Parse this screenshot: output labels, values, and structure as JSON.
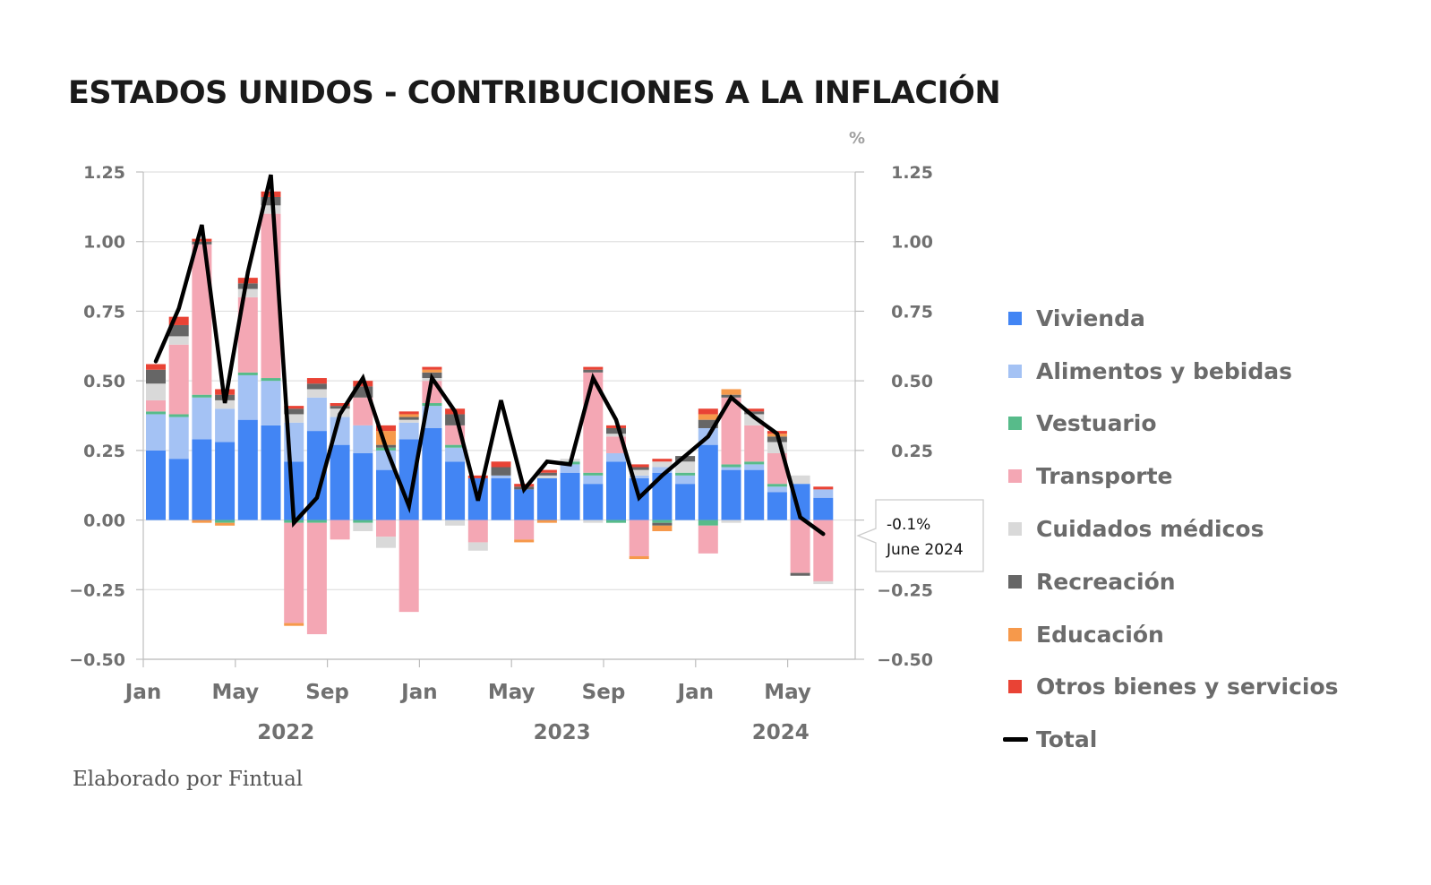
{
  "title": "ESTADOS UNIDOS - CONTRIBUCIONES A LA INFLACIÓN",
  "credit": "Elaborado por Fintual",
  "tooltip": {
    "value": "-0.1%",
    "date": "June 2024"
  },
  "chart_data": {
    "type": "bar",
    "stacked": true,
    "unit_label": "%",
    "ylim": [
      -0.5,
      1.25
    ],
    "y_ticks": [
      "1.25",
      "1.00",
      "0.75",
      "0.50",
      "0.25",
      "0.00",
      "−0.25",
      "−0.50"
    ],
    "y_tick_values": [
      1.25,
      1.0,
      0.75,
      0.5,
      0.25,
      0.0,
      -0.25,
      -0.5
    ],
    "x_tick_labels": [
      {
        "index": 0,
        "label": "Jan"
      },
      {
        "index": 4,
        "label": "May"
      },
      {
        "index": 8,
        "label": "Sep"
      },
      {
        "index": 12,
        "label": "Jan"
      },
      {
        "index": 16,
        "label": "May"
      },
      {
        "index": 20,
        "label": "Sep"
      },
      {
        "index": 24,
        "label": "Jan"
      },
      {
        "index": 28,
        "label": "May"
      }
    ],
    "year_labels": [
      {
        "label": "2022",
        "center_index": 6
      },
      {
        "label": "2023",
        "center_index": 18
      },
      {
        "label": "2024",
        "center_index": 27.5
      }
    ],
    "grid": true,
    "legend_position": "right",
    "categories": [
      "2022-01",
      "2022-02",
      "2022-03",
      "2022-04",
      "2022-05",
      "2022-06",
      "2022-07",
      "2022-08",
      "2022-09",
      "2022-10",
      "2022-11",
      "2022-12",
      "2023-01",
      "2023-02",
      "2023-03",
      "2023-04",
      "2023-05",
      "2023-06",
      "2023-07",
      "2023-08",
      "2023-09",
      "2023-10",
      "2023-11",
      "2023-12",
      "2024-01",
      "2024-02",
      "2024-03",
      "2024-04",
      "2024-05",
      "2024-06"
    ],
    "series": [
      {
        "name": "Vivienda",
        "color": "#4285f4",
        "values": [
          0.25,
          0.22,
          0.29,
          0.28,
          0.36,
          0.34,
          0.21,
          0.32,
          0.27,
          0.24,
          0.18,
          0.29,
          0.33,
          0.21,
          0.15,
          0.15,
          0.11,
          0.15,
          0.17,
          0.13,
          0.21,
          0.15,
          0.17,
          0.13,
          0.27,
          0.18,
          0.18,
          0.1,
          0.13,
          0.08
        ]
      },
      {
        "name": "Alimentos y bebidas",
        "color": "#a4c2f4",
        "values": [
          0.13,
          0.15,
          0.15,
          0.12,
          0.16,
          0.16,
          0.14,
          0.12,
          0.1,
          0.1,
          0.07,
          0.06,
          0.08,
          0.05,
          0.0,
          0.01,
          0.0,
          0.0,
          0.03,
          0.03,
          0.03,
          0.01,
          0.02,
          0.03,
          0.06,
          0.01,
          0.02,
          0.02,
          0.0,
          0.03
        ]
      },
      {
        "name": "Vestuario",
        "color": "#57bb8a",
        "values": [
          0.01,
          0.01,
          0.01,
          -0.01,
          0.01,
          0.01,
          -0.01,
          -0.01,
          0.0,
          -0.01,
          0.01,
          0.0,
          0.01,
          0.01,
          0.0,
          0.0,
          0.0,
          0.0,
          0.01,
          0.01,
          -0.01,
          0.0,
          -0.01,
          0.01,
          -0.02,
          0.01,
          0.01,
          0.01,
          0.0,
          0.0
        ]
      },
      {
        "name": "Transporte",
        "color": "#f4a7b4",
        "values": [
          0.04,
          0.25,
          0.54,
          0.0,
          0.27,
          0.59,
          -0.36,
          -0.4,
          -0.07,
          0.1,
          -0.06,
          -0.33,
          0.08,
          0.07,
          -0.08,
          0.0,
          -0.07,
          0.0,
          0.0,
          0.36,
          0.06,
          -0.13,
          0.0,
          0.0,
          -0.1,
          0.24,
          0.13,
          0.11,
          -0.19,
          -0.22
        ]
      },
      {
        "name": "Cuidados médicos",
        "color": "#d9d9d9",
        "values": [
          0.06,
          0.03,
          0.0,
          0.03,
          0.03,
          0.03,
          0.03,
          0.03,
          0.03,
          -0.03,
          -0.04,
          0.01,
          0.01,
          -0.02,
          -0.03,
          0.0,
          0.0,
          0.01,
          0.01,
          -0.01,
          0.01,
          0.02,
          0.02,
          0.04,
          0.0,
          -0.01,
          0.04,
          0.04,
          0.03,
          -0.01
        ]
      },
      {
        "name": "Recreación",
        "color": "#666666",
        "values": [
          0.05,
          0.04,
          0.01,
          0.02,
          0.02,
          0.03,
          0.02,
          0.02,
          0.01,
          0.04,
          0.01,
          0.01,
          0.02,
          0.04,
          0.0,
          0.03,
          0.01,
          0.01,
          0.0,
          0.01,
          0.02,
          0.01,
          -0.01,
          0.02,
          0.03,
          0.01,
          0.01,
          0.02,
          -0.01,
          0.0
        ]
      },
      {
        "name": "Educación",
        "color": "#f6994b",
        "values": [
          0.0,
          0.0,
          -0.01,
          -0.01,
          0.0,
          0.0,
          -0.01,
          0.0,
          0.0,
          0.0,
          0.05,
          0.01,
          0.01,
          0.0,
          0.0,
          0.0,
          -0.01,
          -0.01,
          0.0,
          0.0,
          0.0,
          -0.01,
          -0.02,
          0.0,
          0.02,
          0.02,
          0.0,
          0.01,
          0.0,
          0.0
        ]
      },
      {
        "name": "Otros bienes y servicios",
        "color": "#e94335",
        "values": [
          0.02,
          0.03,
          0.01,
          0.02,
          0.02,
          0.02,
          0.01,
          0.02,
          0.01,
          0.02,
          0.02,
          0.01,
          0.01,
          0.02,
          0.01,
          0.02,
          0.01,
          0.01,
          0.0,
          0.01,
          0.01,
          0.01,
          0.01,
          0.0,
          0.02,
          0.0,
          0.01,
          0.01,
          0.0,
          0.01
        ]
      }
    ],
    "total": {
      "name": "Total",
      "color": "#000000",
      "values": [
        0.57,
        0.76,
        1.06,
        0.42,
        0.89,
        1.24,
        -0.01,
        0.08,
        0.38,
        0.51,
        0.26,
        0.05,
        0.51,
        0.39,
        0.07,
        0.43,
        0.11,
        0.21,
        0.2,
        0.51,
        0.36,
        0.08,
        0.16,
        0.23,
        0.3,
        0.44,
        0.37,
        0.31,
        0.01,
        -0.05
      ]
    }
  }
}
